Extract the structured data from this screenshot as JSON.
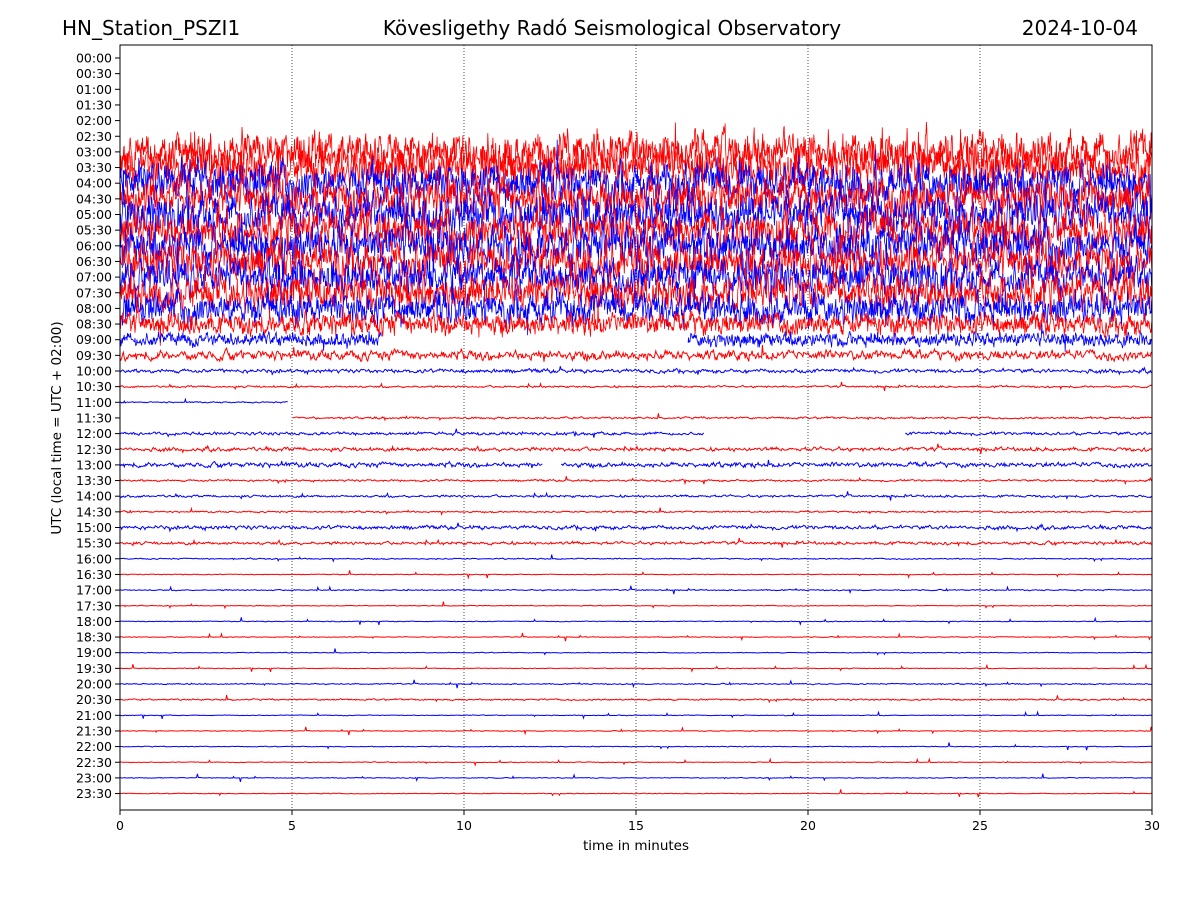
{
  "header": {
    "station": "HN_Station_PSZI1",
    "observatory": "Kövesligethy Radó Seismological Observatory",
    "date": "2024-10-04"
  },
  "chart_data": {
    "type": "line",
    "title": "Kövesligethy Radó Seismological Observatory",
    "xlabel": "time in minutes",
    "ylabel": "UTC (local time = UTC + 02:00)",
    "xlim": [
      0,
      30
    ],
    "x_ticks": [
      "0",
      "5",
      "10",
      "15",
      "20",
      "25",
      "30"
    ],
    "x_tick_values": [
      0,
      5,
      10,
      15,
      20,
      25,
      30
    ],
    "vertical_gridlines": [
      5,
      10,
      15,
      20,
      25
    ],
    "grid": "vertical dotted",
    "trace_colors": [
      "#ff0000",
      "#0000ff"
    ],
    "rows": [
      {
        "label": "00:00",
        "color": "blue",
        "amp": 0,
        "present": false
      },
      {
        "label": "00:30",
        "color": "red",
        "amp": 0,
        "present": false
      },
      {
        "label": "01:00",
        "color": "blue",
        "amp": 0,
        "present": false
      },
      {
        "label": "01:30",
        "color": "red",
        "amp": 0,
        "present": false
      },
      {
        "label": "02:00",
        "color": "blue",
        "amp": 0,
        "present": false
      },
      {
        "label": "02:30",
        "color": "red",
        "amp": 0,
        "present": false
      },
      {
        "label": "03:00",
        "color": "red",
        "amp": 1.0,
        "present": true
      },
      {
        "label": "03:30",
        "color": "red",
        "amp": 1.0,
        "present": true
      },
      {
        "label": "04:00",
        "color": "blue",
        "amp": 1.0,
        "present": true
      },
      {
        "label": "04:30",
        "color": "red",
        "amp": 1.0,
        "present": true
      },
      {
        "label": "05:00",
        "color": "blue",
        "amp": 1.0,
        "present": true
      },
      {
        "label": "05:30",
        "color": "red",
        "amp": 1.0,
        "present": true
      },
      {
        "label": "06:00",
        "color": "blue",
        "amp": 1.0,
        "present": true
      },
      {
        "label": "06:30",
        "color": "red",
        "amp": 1.0,
        "present": true
      },
      {
        "label": "07:00",
        "color": "blue",
        "amp": 0.9,
        "present": true
      },
      {
        "label": "07:30",
        "color": "red",
        "amp": 0.9,
        "present": true
      },
      {
        "label": "08:00",
        "color": "blue",
        "amp": 0.8,
        "present": true
      },
      {
        "label": "08:30",
        "color": "red",
        "amp": 0.55,
        "present": true
      },
      {
        "label": "09:00",
        "color": "blue",
        "amp": 0.35,
        "present": true,
        "gap": [
          7.6,
          16.5
        ]
      },
      {
        "label": "09:30",
        "color": "red",
        "amp": 0.25,
        "present": true
      },
      {
        "label": "10:00",
        "color": "blue",
        "amp": 0.1,
        "present": true
      },
      {
        "label": "10:30",
        "color": "red",
        "amp": 0.05,
        "present": true
      },
      {
        "label": "11:00",
        "color": "blue",
        "amp": 0.03,
        "present": true,
        "gap": [
          4.9,
          30
        ]
      },
      {
        "label": "11:30",
        "color": "red",
        "amp": 0.05,
        "present": true,
        "gap": [
          0,
          5.0
        ]
      },
      {
        "label": "12:00",
        "color": "blue",
        "amp": 0.08,
        "present": true,
        "gap": [
          17.0,
          22.8
        ]
      },
      {
        "label": "12:30",
        "color": "red",
        "amp": 0.1,
        "present": true
      },
      {
        "label": "13:00",
        "color": "blue",
        "amp": 0.12,
        "present": true,
        "gap": [
          12.3,
          12.8
        ]
      },
      {
        "label": "13:30",
        "color": "red",
        "amp": 0.05,
        "present": true
      },
      {
        "label": "14:00",
        "color": "blue",
        "amp": 0.06,
        "present": true
      },
      {
        "label": "14:30",
        "color": "red",
        "amp": 0.04,
        "present": true
      },
      {
        "label": "15:00",
        "color": "blue",
        "amp": 0.1,
        "present": true
      },
      {
        "label": "15:30",
        "color": "red",
        "amp": 0.08,
        "present": true
      },
      {
        "label": "16:00",
        "color": "blue",
        "amp": 0.03,
        "present": true
      },
      {
        "label": "16:30",
        "color": "red",
        "amp": 0.02,
        "present": true
      },
      {
        "label": "17:00",
        "color": "blue",
        "amp": 0.03,
        "present": true
      },
      {
        "label": "17:30",
        "color": "red",
        "amp": 0.02,
        "present": true
      },
      {
        "label": "18:00",
        "color": "blue",
        "amp": 0.02,
        "present": true
      },
      {
        "label": "18:30",
        "color": "red",
        "amp": 0.02,
        "present": true
      },
      {
        "label": "19:00",
        "color": "blue",
        "amp": 0.02,
        "present": true
      },
      {
        "label": "19:30",
        "color": "red",
        "amp": 0.02,
        "present": true
      },
      {
        "label": "20:00",
        "color": "blue",
        "amp": 0.03,
        "present": true
      },
      {
        "label": "20:30",
        "color": "red",
        "amp": 0.04,
        "present": true
      },
      {
        "label": "21:00",
        "color": "blue",
        "amp": 0.02,
        "present": true
      },
      {
        "label": "21:30",
        "color": "red",
        "amp": 0.02,
        "present": true
      },
      {
        "label": "22:00",
        "color": "blue",
        "amp": 0.02,
        "present": true
      },
      {
        "label": "22:30",
        "color": "red",
        "amp": 0.02,
        "present": true
      },
      {
        "label": "23:00",
        "color": "blue",
        "amp": 0.02,
        "present": true
      },
      {
        "label": "23:30",
        "color": "red",
        "amp": 0.02,
        "present": true
      }
    ]
  }
}
